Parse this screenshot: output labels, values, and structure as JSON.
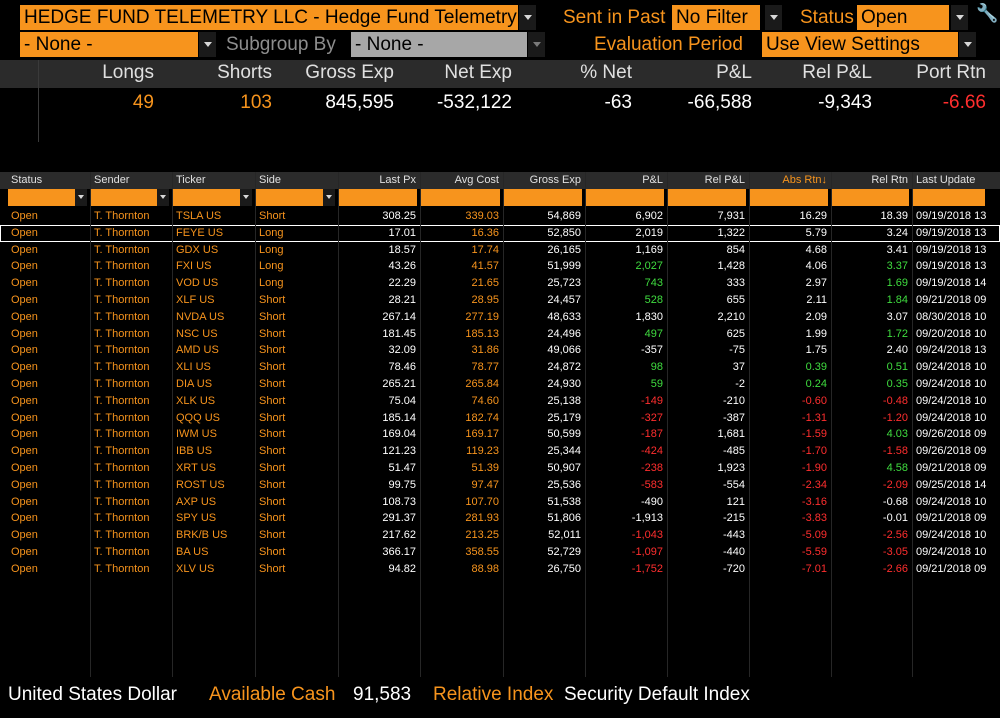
{
  "filters": {
    "title": "HEDGE FUND TELEMETRY LLC - Hedge Fund Telemetry Ideas",
    "sent_in_past_label": "Sent in Past",
    "sent_in_past_value": "No Filter",
    "status_label": "Status",
    "status_value": "Open",
    "group_value": "- None -",
    "subgroup_label": "Subgroup By",
    "subgroup_value": "- None -",
    "evaluation_label": "Evaluation Period",
    "evaluation_value": "Use View Settings"
  },
  "summary": {
    "headers": [
      "Longs",
      "Shorts",
      "Gross Exp",
      "Net Exp",
      "% Net",
      "P&L",
      "Rel P&L",
      "Port Rtn"
    ],
    "values": [
      "49",
      "103",
      "845,595",
      "-532,122",
      "-63",
      "-66,588",
      "-9,343",
      "-6.66"
    ],
    "value_colors": [
      "#f7941d",
      "#f7941d",
      "#ffffff",
      "#ffffff",
      "#ffffff",
      "#ffffff",
      "#ffffff",
      "#ff2e2e"
    ]
  },
  "table": {
    "headers": [
      "Status",
      "Sender",
      "Ticker",
      "Side",
      "Last Px",
      "Avg Cost",
      "Gross Exp",
      "P&L",
      "Rel P&L",
      "Abs Rtn↓",
      "Rel Rtn",
      "Last Update"
    ],
    "rows": [
      [
        "Open",
        "T. Thornton",
        "TSLA US",
        "Short",
        "308.25",
        "339.03",
        "54,869",
        "6,902",
        "7,931",
        "16.29",
        "18.39",
        "09/19/2018 13:"
      ],
      [
        "Open",
        "T. Thornton",
        "FEYE US",
        "Long",
        "17.01",
        "16.36",
        "52,850",
        "2,019",
        "1,322",
        "5.79",
        "3.24",
        "09/19/2018 13"
      ],
      [
        "Open",
        "T. Thornton",
        "GDX US",
        "Long",
        "18.57",
        "17.74",
        "26,165",
        "1,169",
        "854",
        "4.68",
        "3.41",
        "09/19/2018 13:"
      ],
      [
        "Open",
        "T. Thornton",
        "FXI US",
        "Long",
        "43.26",
        "41.57",
        "51,999",
        "2,027",
        "1,428",
        "4.06",
        "3.37",
        "09/19/2018 13:"
      ],
      [
        "Open",
        "T. Thornton",
        "VOD US",
        "Long",
        "22.29",
        "21.65",
        "25,723",
        "743",
        "333",
        "2.97",
        "1.69",
        "09/19/2018 14:"
      ],
      [
        "Open",
        "T. Thornton",
        "XLF US",
        "Short",
        "28.21",
        "28.95",
        "24,457",
        "528",
        "655",
        "2.11",
        "1.84",
        "09/21/2018 09:"
      ],
      [
        "Open",
        "T. Thornton",
        "NVDA US",
        "Short",
        "267.14",
        "277.19",
        "48,633",
        "1,830",
        "2,210",
        "2.09",
        "3.07",
        "08/30/2018 10:"
      ],
      [
        "Open",
        "T. Thornton",
        "NSC US",
        "Short",
        "181.45",
        "185.13",
        "24,496",
        "497",
        "625",
        "1.99",
        "1.72",
        "09/20/2018 10:"
      ],
      [
        "Open",
        "T. Thornton",
        "AMD US",
        "Short",
        "32.09",
        "31.86",
        "49,066",
        "-357",
        "-75",
        "1.75",
        "2.40",
        "09/24/2018 13:"
      ],
      [
        "Open",
        "T. Thornton",
        "XLI US",
        "Short",
        "78.46",
        "78.77",
        "24,872",
        "98",
        "37",
        "0.39",
        "0.51",
        "09/24/2018 10:"
      ],
      [
        "Open",
        "T. Thornton",
        "DIA US",
        "Short",
        "265.21",
        "265.84",
        "24,930",
        "59",
        "-2",
        "0.24",
        "0.35",
        "09/24/2018 10:"
      ],
      [
        "Open",
        "T. Thornton",
        "XLK US",
        "Short",
        "75.04",
        "74.60",
        "25,138",
        "-149",
        "-210",
        "-0.60",
        "-0.48",
        "09/24/2018 10:"
      ],
      [
        "Open",
        "T. Thornton",
        "QQQ US",
        "Short",
        "185.14",
        "182.74",
        "25,179",
        "-327",
        "-387",
        "-1.31",
        "-1.20",
        "09/24/2018 10:"
      ],
      [
        "Open",
        "T. Thornton",
        "IWM US",
        "Short",
        "169.04",
        "169.17",
        "50,599",
        "-187",
        "1,681",
        "-1.59",
        "4.03",
        "09/26/2018 09:"
      ],
      [
        "Open",
        "T. Thornton",
        "IBB US",
        "Short",
        "121.23",
        "119.23",
        "25,344",
        "-424",
        "-485",
        "-1.70",
        "-1.58",
        "09/26/2018 09:"
      ],
      [
        "Open",
        "T. Thornton",
        "XRT US",
        "Short",
        "51.47",
        "51.39",
        "50,907",
        "-238",
        "1,923",
        "-1.90",
        "4.58",
        "09/21/2018 09:"
      ],
      [
        "Open",
        "T. Thornton",
        "ROST US",
        "Short",
        "99.75",
        "97.47",
        "25,536",
        "-583",
        "-554",
        "-2.34",
        "-2.09",
        "09/25/2018 14:"
      ],
      [
        "Open",
        "T. Thornton",
        "AXP US",
        "Short",
        "108.73",
        "107.70",
        "51,538",
        "-490",
        "121",
        "-3.16",
        "-0.68",
        "09/24/2018 10:"
      ],
      [
        "Open",
        "T. Thornton",
        "SPY US",
        "Short",
        "291.37",
        "281.93",
        "51,806",
        "-1,913",
        "-215",
        "-3.83",
        "-0.01",
        "09/21/2018 09:"
      ],
      [
        "Open",
        "T. Thornton",
        "BRK/B US",
        "Short",
        "217.62",
        "213.25",
        "52,011",
        "-1,043",
        "-443",
        "-5.09",
        "-2.56",
        "09/24/2018 10:"
      ],
      [
        "Open",
        "T. Thornton",
        "BA US",
        "Short",
        "366.17",
        "358.55",
        "52,729",
        "-1,097",
        "-440",
        "-5.59",
        "-3.05",
        "09/24/2018 10:"
      ],
      [
        "Open",
        "T. Thornton",
        "XLV US",
        "Short",
        "94.82",
        "88.98",
        "26,750",
        "-1,752",
        "-720",
        "-7.01",
        "-2.66",
        "09/21/2018 09:"
      ]
    ]
  },
  "footer": {
    "currency": "United States Dollar",
    "cash_label": "Available Cash",
    "cash_value": "91,583",
    "index_label": "Relative Index",
    "index_value": "Security Default Index"
  },
  "colors": {
    "accent": "#f7941d",
    "positive": "#3fdc3f",
    "negative": "#ff2e2e"
  },
  "icons": {
    "settings": "wrench-icon"
  }
}
